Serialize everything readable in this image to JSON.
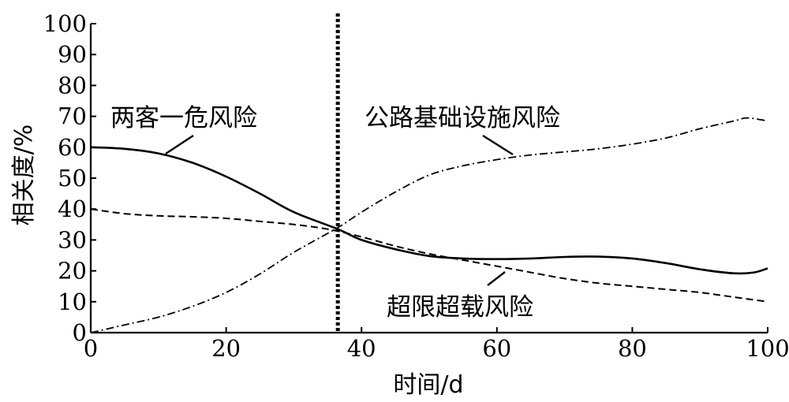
{
  "chart_data": {
    "type": "line",
    "xlabel": "时间/d",
    "ylabel": "相关度/%",
    "xlim": [
      0,
      100
    ],
    "ylim": [
      0,
      100
    ],
    "x_ticks": [
      "0",
      "20",
      "40",
      "60",
      "80",
      "100"
    ],
    "y_ticks": [
      "0",
      "10",
      "20",
      "30",
      "40",
      "50",
      "60",
      "70",
      "80",
      "90",
      "100"
    ],
    "vertical_marker": {
      "x": 36.5,
      "style": "dotted"
    },
    "series": [
      {
        "name": "两客一危风险",
        "line_style": "solid",
        "x": [
          0,
          5,
          10,
          15,
          20,
          25,
          30,
          36.5,
          40,
          45,
          50,
          55,
          60,
          65,
          70,
          75,
          80,
          85,
          90,
          95,
          98,
          100
        ],
        "y": [
          60,
          59.5,
          58,
          55,
          50.5,
          45,
          39,
          33.5,
          30,
          27,
          24.8,
          24,
          23.8,
          24,
          24.5,
          24.6,
          24,
          22.5,
          20.5,
          19.2,
          19.5,
          20.8
        ]
      },
      {
        "name": "超限超载风险",
        "line_style": "dashed",
        "x": [
          0,
          5,
          10,
          15,
          20,
          25,
          30,
          35,
          40,
          45,
          50,
          55,
          60,
          65,
          70,
          75,
          80,
          85,
          90,
          95,
          100
        ],
        "y": [
          40,
          38.5,
          37.8,
          37.5,
          37,
          36,
          35,
          33.5,
          31,
          28,
          25.5,
          23.5,
          21.5,
          19.5,
          17.5,
          16,
          15,
          14,
          13,
          11.5,
          10
        ]
      },
      {
        "name": "公路基础设施风险",
        "line_style": "dash-dot",
        "x": [
          0,
          5,
          10,
          15,
          20,
          25,
          30,
          36.5,
          40,
          45,
          50,
          55,
          60,
          65,
          70,
          75,
          80,
          85,
          90,
          95,
          97,
          100
        ],
        "y": [
          0,
          2.5,
          5,
          8.5,
          13,
          19,
          26,
          34,
          39,
          45.5,
          51,
          54,
          56,
          57.5,
          58.5,
          59.5,
          61,
          63,
          66,
          68.5,
          69.5,
          68.5
        ]
      }
    ],
    "grid": false
  }
}
